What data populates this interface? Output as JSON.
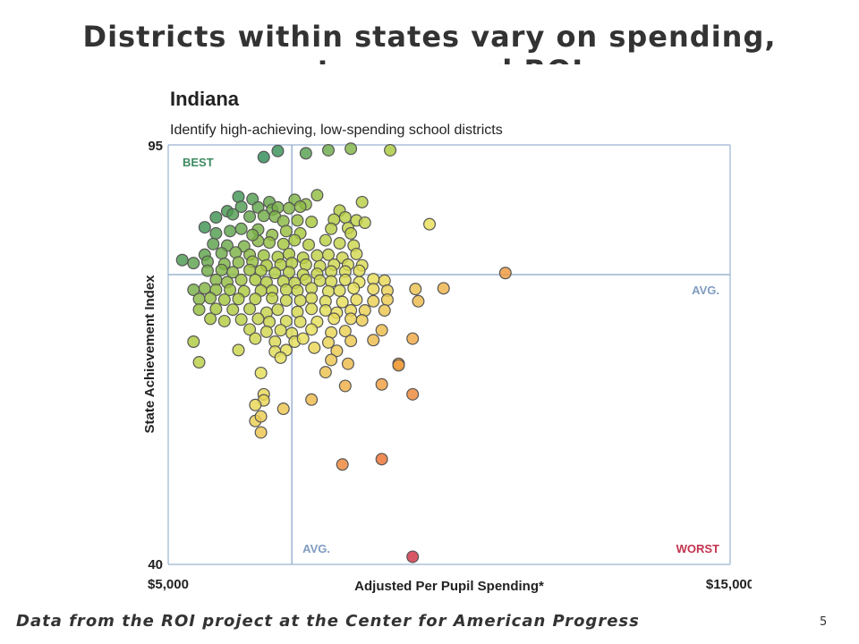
{
  "slide": {
    "title": "Districts within states vary on spending, outcomes and ROI",
    "footer": "Data from the ROI project at the Center for American Progress",
    "page_number": "5"
  },
  "chart_data": {
    "type": "scatter",
    "title": "Indiana",
    "subtitle": "Identify high-achieving, low-spending school districts",
    "xlabel": "Adjusted Per Pupil Spending*",
    "ylabel": "State Achievement Index",
    "xlim": [
      5000,
      15000
    ],
    "ylim": [
      40,
      95
    ],
    "x_tick_labels": [
      "$5,000",
      "$15,000"
    ],
    "y_tick_labels": [
      "95",
      "40"
    ],
    "avg_x": 7200,
    "avg_y": 78,
    "quadrant_labels": {
      "best": "BEST",
      "worst": "WORST",
      "avg_x": "AVG.",
      "avg_y": "AVG."
    },
    "colors": {
      "best": "#2e8b57",
      "good": "#a8c83c",
      "mid": "#e8e05a",
      "fair": "#f0a040",
      "poor": "#e8602c",
      "worst": "#cc2a4a",
      "avg_line": "#9bb3d1"
    },
    "grid": false,
    "points": [
      [
        6950,
        94.2
      ],
      [
        8250,
        94.5
      ],
      [
        7850,
        94.3
      ],
      [
        8950,
        94.3
      ],
      [
        7450,
        93.9
      ],
      [
        6700,
        93.4
      ],
      [
        6250,
        88.2
      ],
      [
        6500,
        87.9
      ],
      [
        6800,
        87.5
      ],
      [
        7250,
        87.8
      ],
      [
        7450,
        87.2
      ],
      [
        7650,
        88.4
      ],
      [
        8450,
        87.5
      ],
      [
        6050,
        86.3
      ],
      [
        6300,
        86.9
      ],
      [
        6600,
        86.8
      ],
      [
        6850,
        86.5
      ],
      [
        6950,
        86.8
      ],
      [
        7150,
        86.7
      ],
      [
        7350,
        86.9
      ],
      [
        8050,
        86.4
      ],
      [
        5850,
        85.5
      ],
      [
        6150,
        85.9
      ],
      [
        6450,
        85.6
      ],
      [
        6700,
        85.7
      ],
      [
        6900,
        85.6
      ],
      [
        7050,
        85.0
      ],
      [
        7300,
        85.1
      ],
      [
        7550,
        84.9
      ],
      [
        7950,
        85.2
      ],
      [
        8150,
        85.5
      ],
      [
        8350,
        85.1
      ],
      [
        9650,
        84.6
      ],
      [
        5650,
        84.2
      ],
      [
        5850,
        83.4
      ],
      [
        6100,
        83.7
      ],
      [
        6300,
        84.0
      ],
      [
        6600,
        83.9
      ],
      [
        6850,
        83.2
      ],
      [
        7100,
        83.7
      ],
      [
        7350,
        83.4
      ],
      [
        7900,
        84.0
      ],
      [
        8200,
        84.1
      ],
      [
        8500,
        84.8
      ],
      [
        8250,
        83.4
      ],
      [
        5800,
        82.0
      ],
      [
        6050,
        81.8
      ],
      [
        6350,
        81.7
      ],
      [
        6600,
        82.4
      ],
      [
        6800,
        82.2
      ],
      [
        7050,
        82.0
      ],
      [
        7250,
        82.5
      ],
      [
        7500,
        81.9
      ],
      [
        7800,
        82.5
      ],
      [
        8050,
        82.1
      ],
      [
        8300,
        81.8
      ],
      [
        6500,
        83.2
      ],
      [
        5650,
        80.6
      ],
      [
        5950,
        80.8
      ],
      [
        6200,
        80.9
      ],
      [
        6450,
        80.6
      ],
      [
        6700,
        80.5
      ],
      [
        6950,
        80.3
      ],
      [
        7150,
        80.7
      ],
      [
        7400,
        80.2
      ],
      [
        7650,
        80.5
      ],
      [
        7850,
        80.6
      ],
      [
        8100,
        80.2
      ],
      [
        8350,
        80.7
      ],
      [
        5250,
        79.9
      ],
      [
        5450,
        79.5
      ],
      [
        5700,
        79.7
      ],
      [
        6000,
        79.4
      ],
      [
        6250,
        79.6
      ],
      [
        6500,
        79.7
      ],
      [
        6750,
        79.2
      ],
      [
        7000,
        79.3
      ],
      [
        7200,
        79.5
      ],
      [
        7450,
        79.3
      ],
      [
        7700,
        79.1
      ],
      [
        7950,
        79.3
      ],
      [
        8200,
        79.3
      ],
      [
        8450,
        79.2
      ],
      [
        5700,
        78.5
      ],
      [
        5950,
        78.6
      ],
      [
        6150,
        78.3
      ],
      [
        6450,
        78.6
      ],
      [
        6650,
        78.5
      ],
      [
        6900,
        78.2
      ],
      [
        7150,
        78.3
      ],
      [
        7400,
        78.0
      ],
      [
        7650,
        78.1
      ],
      [
        7900,
        78.4
      ],
      [
        8150,
        78.4
      ],
      [
        8400,
        78.5
      ],
      [
        5850,
        77.3
      ],
      [
        6050,
        77.0
      ],
      [
        6300,
        77.3
      ],
      [
        6550,
        77.3
      ],
      [
        6750,
        77.0
      ],
      [
        7050,
        77.1
      ],
      [
        7250,
        76.9
      ],
      [
        7450,
        77.3
      ],
      [
        7700,
        77.2
      ],
      [
        7900,
        77.1
      ],
      [
        8150,
        77.3
      ],
      [
        8400,
        77.0
      ],
      [
        8650,
        77.4
      ],
      [
        8850,
        77.2
      ],
      [
        5450,
        76.0
      ],
      [
        5650,
        76.2
      ],
      [
        5850,
        76.0
      ],
      [
        6100,
        76.0
      ],
      [
        6350,
        75.8
      ],
      [
        6650,
        75.9
      ],
      [
        6850,
        75.9
      ],
      [
        7100,
        76.0
      ],
      [
        7300,
        75.9
      ],
      [
        7550,
        76.2
      ],
      [
        7850,
        75.8
      ],
      [
        8050,
        75.9
      ],
      [
        8300,
        76.2
      ],
      [
        8650,
        76.1
      ],
      [
        8900,
        75.9
      ],
      [
        9400,
        76.1
      ],
      [
        9900,
        76.2
      ],
      [
        5550,
        74.8
      ],
      [
        5750,
        74.9
      ],
      [
        6000,
        74.7
      ],
      [
        6250,
        74.8
      ],
      [
        6550,
        74.8
      ],
      [
        6850,
        74.9
      ],
      [
        7100,
        74.6
      ],
      [
        7350,
        74.6
      ],
      [
        7550,
        74.9
      ],
      [
        7800,
        74.5
      ],
      [
        8100,
        74.4
      ],
      [
        8350,
        74.7
      ],
      [
        8650,
        74.5
      ],
      [
        8900,
        74.7
      ],
      [
        9450,
        74.5
      ],
      [
        5550,
        73.4
      ],
      [
        5850,
        73.5
      ],
      [
        6150,
        73.4
      ],
      [
        6450,
        73.5
      ],
      [
        6750,
        73.0
      ],
      [
        6950,
        73.4
      ],
      [
        7300,
        73.1
      ],
      [
        7550,
        73.5
      ],
      [
        7800,
        73.3
      ],
      [
        8000,
        73.0
      ],
      [
        8250,
        73.3
      ],
      [
        8500,
        73.3
      ],
      [
        8850,
        73.3
      ],
      [
        5750,
        72.2
      ],
      [
        6000,
        71.9
      ],
      [
        6300,
        72.1
      ],
      [
        6600,
        72.2
      ],
      [
        6800,
        71.8
      ],
      [
        7100,
        71.9
      ],
      [
        7350,
        71.8
      ],
      [
        7650,
        71.8
      ],
      [
        7950,
        72.2
      ],
      [
        8250,
        72.2
      ],
      [
        8450,
        72.0
      ],
      [
        6450,
        70.8
      ],
      [
        6750,
        70.5
      ],
      [
        7000,
        70.7
      ],
      [
        7200,
        70.3
      ],
      [
        7550,
        70.8
      ],
      [
        7900,
        70.4
      ],
      [
        8150,
        70.6
      ],
      [
        8800,
        70.7
      ],
      [
        5450,
        69.2
      ],
      [
        6550,
        69.6
      ],
      [
        6900,
        69.2
      ],
      [
        7250,
        69.2
      ],
      [
        7400,
        69.6
      ],
      [
        7850,
        69.1
      ],
      [
        8250,
        69.3
      ],
      [
        8650,
        69.4
      ],
      [
        9350,
        69.6
      ],
      [
        6250,
        68.1
      ],
      [
        6900,
        67.9
      ],
      [
        7100,
        68.1
      ],
      [
        7600,
        68.4
      ],
      [
        8000,
        68.0
      ],
      [
        5550,
        66.5
      ],
      [
        7000,
        67.1
      ],
      [
        7900,
        66.8
      ],
      [
        8200,
        66.3
      ],
      [
        9100,
        66.3
      ],
      [
        9100,
        66.1
      ],
      [
        6650,
        65.1
      ],
      [
        7800,
        65.2
      ],
      [
        6700,
        62.3
      ],
      [
        6700,
        61.5
      ],
      [
        7550,
        61.6
      ],
      [
        8150,
        63.4
      ],
      [
        8800,
        63.6
      ],
      [
        9350,
        62.3
      ],
      [
        6550,
        60.9
      ],
      [
        6550,
        58.8
      ],
      [
        7050,
        60.4
      ],
      [
        6650,
        59.4
      ],
      [
        6650,
        57.3
      ],
      [
        8100,
        53.1
      ],
      [
        8800,
        53.8
      ],
      [
        9350,
        41.0
      ],
      [
        11000,
        78.2
      ]
    ]
  }
}
